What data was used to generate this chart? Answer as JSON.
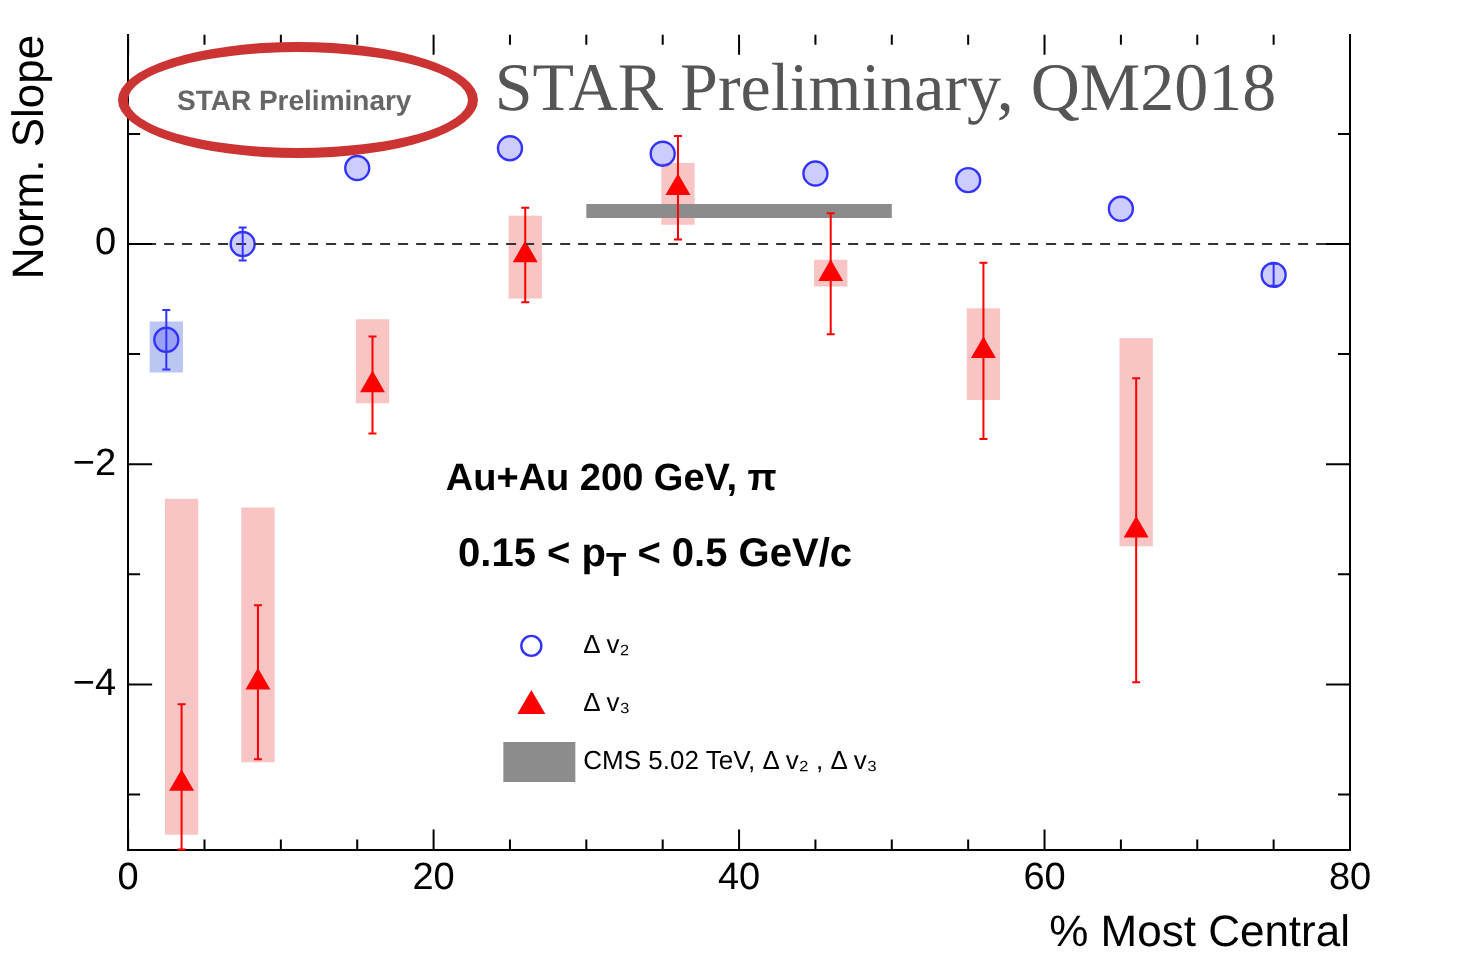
{
  "chart_data": {
    "type": "scatter",
    "xlabel": "% Most Central",
    "ylabel": "Norm. Slope",
    "annotations": [
      "STAR Preliminary, QM2018",
      "STAR Preliminary",
      "Au+Au 200 GeV, π",
      "0.15 < p$_{T}$ < 0.5 GeV/c"
    ],
    "xlim": [
      0,
      80
    ],
    "ylim": [
      -5.5,
      1.9
    ],
    "xticks": [
      0,
      {
        "value": 5,
        "label": null
      },
      {
        "value": 10,
        "label": null
      },
      {
        "value": 15,
        "label": null
      },
      20,
      {
        "value": 25,
        "label": null
      },
      {
        "value": 30,
        "label": null
      },
      {
        "value": 35,
        "label": null
      },
      40,
      {
        "value": 45,
        "label": null
      },
      {
        "value": 50,
        "label": null
      },
      {
        "value": 55,
        "label": null
      },
      60,
      {
        "value": 65,
        "label": null
      },
      {
        "value": 70,
        "label": null
      },
      {
        "value": 75,
        "label": null
      },
      80
    ],
    "yticks": [
      {
        "value": -5,
        "label": null
      },
      {
        "value": -4,
        "label": "−4"
      },
      {
        "value": -3,
        "label": null
      },
      {
        "value": -2,
        "label": "−2"
      },
      {
        "value": -1,
        "label": null
      },
      0,
      {
        "value": 1,
        "label": null
      }
    ],
    "grid": false,
    "legend": "bottom",
    "ref_lines": [
      {
        "axis": "y",
        "value": 0,
        "color": "#333333",
        "line_style": "dashed"
      }
    ],
    "series": [
      {
        "type": "bar",
        "color": "#f9c4c4",
        "x": [
          3.5,
          8.5,
          16,
          26,
          36,
          46,
          56,
          66
        ],
        "base": [
          -5.36,
          -4.7,
          -1.44,
          -0.49,
          0.18,
          -0.38,
          -1.41,
          -2.74
        ],
        "values": [
          3.04,
          2.3,
          0.75,
          0.74,
          0.55,
          0.23,
          0.82,
          1.88
        ]
      },
      {
        "type": "bar",
        "color": "#bcc6f2",
        "x": [
          2.5
        ],
        "base": [
          -1.16
        ],
        "values": [
          0.45
        ]
      },
      {
        "type": "line",
        "name": "CMS 5.02 TeV, Δ v₂ , Δ v₃",
        "color": "#8c8c8c",
        "marker": "none",
        "x": [
          30,
          50
        ],
        "values": [
          0.3,
          0.3
        ]
      },
      {
        "name": "Δ v₂",
        "color": "#3333ff",
        "marker": "circle",
        "x": [
          2.5,
          7.5,
          15,
          25,
          35,
          45,
          55,
          65,
          75
        ],
        "values": [
          -0.87,
          0.0,
          0.69,
          0.87,
          0.82,
          0.64,
          0.58,
          0.32,
          -0.28
        ],
        "errors": [
          0.27,
          0.15,
          null,
          null,
          null,
          null,
          null,
          null,
          0.1
        ]
      },
      {
        "name": "Δ v₃",
        "color": "#ff0000",
        "marker": "triangle",
        "x": [
          3.5,
          8.5,
          16,
          26,
          36,
          46,
          56,
          66
        ],
        "values": [
          -4.9,
          -3.98,
          -1.28,
          -0.1,
          0.51,
          -0.27,
          -0.97,
          -2.6
        ],
        "errors": [
          [
            -5.5,
            -4.18
          ],
          0.7,
          0.44,
          0.43,
          0.47,
          0.55,
          0.8,
          1.38
        ]
      }
    ]
  }
}
